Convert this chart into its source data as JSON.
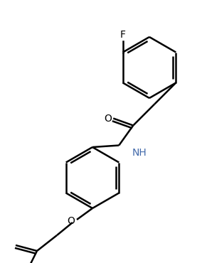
{
  "line_color": "#000000",
  "background": "#ffffff",
  "lw": 1.8,
  "text_color": "#000000",
  "blue_text": "#4169aa",
  "F_label": "F",
  "O_label": "O",
  "NH_label": "NH"
}
